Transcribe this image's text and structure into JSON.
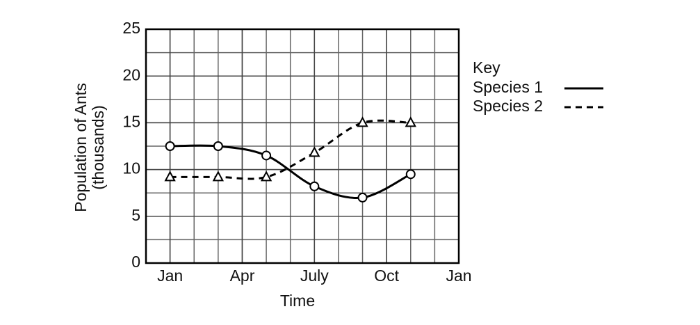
{
  "chart_data": {
    "type": "line",
    "x_label": "Time",
    "y_label": "Population of Ants",
    "y_label_sub": "(thousands)",
    "legend_title": "Key",
    "xlim": [
      -1,
      12
    ],
    "xticks": [
      {
        "value": 0,
        "label": "Jan"
      },
      {
        "value": 3,
        "label": "Apr"
      },
      {
        "value": 6,
        "label": "July"
      },
      {
        "value": 9,
        "label": "Oct"
      },
      {
        "value": 12,
        "label": "Jan"
      }
    ],
    "ylim": [
      0,
      25
    ],
    "yticks": [
      0,
      5,
      10,
      15,
      20,
      25
    ],
    "grid": true,
    "legend_position": "right",
    "series": [
      {
        "name": "Species 1",
        "color": "#000000",
        "dash": "solid",
        "marker": "circle",
        "x": [
          0,
          2,
          4,
          6,
          8,
          10
        ],
        "values": [
          12.5,
          12.5,
          11.5,
          8.2,
          7.0,
          9.5
        ]
      },
      {
        "name": "Species 2",
        "color": "#000000",
        "dash": "dashed",
        "marker": "triangle",
        "x": [
          0,
          2,
          4,
          6,
          8,
          10
        ],
        "values": [
          9.2,
          9.2,
          9.2,
          11.8,
          15,
          15
        ]
      }
    ]
  }
}
